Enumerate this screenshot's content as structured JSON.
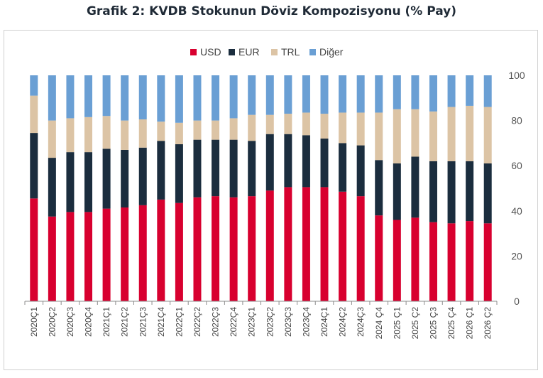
{
  "title": "Grafik 2: KVDB Stokunun Döviz Kompozisyonu (% Pay)",
  "chart_data": {
    "type": "bar",
    "stacked": true,
    "categories": [
      "2020Ç1",
      "2020Ç2",
      "2020Ç3",
      "2020Ç4",
      "2021Ç1",
      "2021Ç2",
      "2021Ç3",
      "2021Ç4",
      "2022Ç1",
      "2022Ç2",
      "2022Ç3",
      "2022Ç4",
      "2023Ç1",
      "2023Ç2",
      "2023Ç3",
      "2023Ç4",
      "2024Ç1",
      "2024Ç2",
      "2024Ç3",
      "2024 Ç4",
      "2025 Ç1",
      "2025 Ç2",
      "2025 Ç3",
      "2025 Ç4",
      "2026 Ç1",
      "2026 Ç2"
    ],
    "series": [
      {
        "name": "USD",
        "color": "#d8002f",
        "values": [
          45.5,
          37.5,
          39.5,
          39.5,
          41,
          41.5,
          42.5,
          45,
          43.5,
          46,
          46.5,
          46,
          46.5,
          49,
          50.5,
          50.5,
          50.5,
          48.5,
          46.5,
          38,
          36,
          37,
          35,
          34.5,
          35.5,
          34.5
        ]
      },
      {
        "name": "EUR",
        "color": "#1b2d3e",
        "values": [
          29,
          26,
          26.5,
          26.5,
          26.5,
          25.5,
          25.5,
          26,
          26,
          25.5,
          25,
          25.5,
          24.5,
          25,
          23.5,
          23,
          21.5,
          21.5,
          22.5,
          24.5,
          25,
          27,
          27,
          27.5,
          26.5,
          26.5
        ]
      },
      {
        "name": "TRL",
        "color": "#dcc4a5",
        "values": [
          16.5,
          16.5,
          15,
          15.5,
          14.5,
          13,
          12.5,
          8.5,
          9.5,
          8.5,
          8.5,
          9.5,
          11.5,
          8.5,
          9,
          10,
          11,
          13.5,
          14.5,
          21,
          24,
          21,
          22,
          24,
          24.5,
          25
        ]
      },
      {
        "name": "Diğer",
        "color": "#6a9fd4",
        "values": [
          9,
          20,
          19,
          18.5,
          18,
          20,
          19.5,
          20.5,
          21,
          20,
          20,
          19,
          17.5,
          17.5,
          17,
          16.5,
          17,
          16.5,
          16.5,
          16.5,
          15,
          15,
          16,
          14,
          13.5,
          14
        ]
      }
    ],
    "y_ticks": [
      0,
      20,
      40,
      60,
      80,
      100
    ],
    "ylim": [
      0,
      100
    ],
    "y_axis_position": "right",
    "legend_position": "top",
    "grid": false
  }
}
